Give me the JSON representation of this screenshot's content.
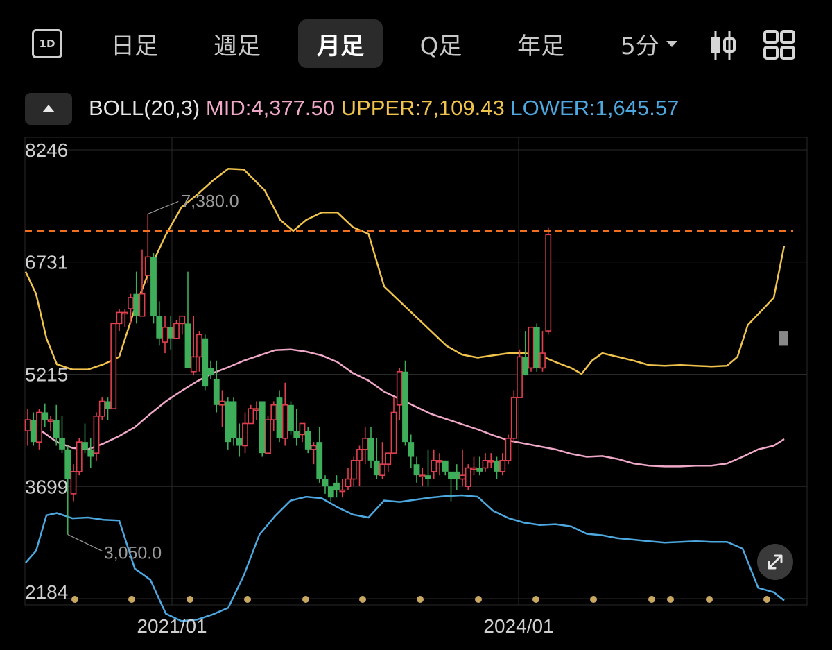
{
  "toolbar": {
    "interval_icon": "1D",
    "tabs": [
      "日足",
      "週足",
      "月足",
      "Q足",
      "年足"
    ],
    "active_tab": "月足",
    "minute_select": "5分",
    "chart_style_icon": "candlestick-icon",
    "layout_icon": "grid-icon"
  },
  "indicator": {
    "name": "BOLL(20,3)",
    "mid_label": "MID:4,377.50",
    "upper_label": "UPPER:7,109.43",
    "lower_label": "LOWER:1,645.57",
    "colors": {
      "mid": "#f0a8c8",
      "upper": "#f0c44c",
      "lower": "#4ea8e0"
    }
  },
  "chart_data": {
    "type": "candlestick",
    "y_axis": {
      "min": 2184,
      "max": 8246,
      "ticks": [
        8246,
        6731,
        5215,
        3699,
        2184
      ]
    },
    "x_axis": {
      "labels": [
        "2021/01",
        "2024/01"
      ]
    },
    "high_annotation": "7,380.0",
    "low_annotation": "3,050.0",
    "current_price_line": 7150,
    "colors": {
      "up": "#e0404e",
      "down": "#3fae5a",
      "dashed_line": "#f07020",
      "gray_bar": "#888888"
    },
    "candles": [
      [
        4450,
        4600,
        4750,
        4250
      ],
      [
        4600,
        4300,
        4700,
        4250
      ],
      [
        4300,
        4700,
        4750,
        4200
      ],
      [
        4700,
        4600,
        4820,
        4500
      ],
      [
        4600,
        4600,
        4650,
        4450
      ],
      [
        4600,
        4350,
        4800,
        4250
      ],
      [
        4350,
        4200,
        4650,
        4150
      ],
      [
        4200,
        3800,
        4250,
        3050
      ],
      [
        3600,
        3900,
        4000,
        3500
      ],
      [
        3900,
        4300,
        4350,
        3850
      ],
      [
        4300,
        4200,
        4550,
        4150
      ],
      [
        4200,
        4100,
        4350,
        3950
      ],
      [
        4150,
        4650,
        4700,
        4050
      ],
      [
        4650,
        4850,
        4900,
        4600
      ],
      [
        4850,
        4750,
        4900,
        4600
      ],
      [
        4750,
        5900,
        5900,
        4750
      ],
      [
        5900,
        6050,
        6100,
        5800
      ],
      [
        6050,
        6050,
        6100,
        5850
      ],
      [
        6100,
        6250,
        6300,
        5900
      ],
      [
        6300,
        6000,
        6600,
        5900
      ],
      [
        6000,
        6300,
        6900,
        6000
      ],
      [
        6550,
        6800,
        7380,
        6450
      ],
      [
        6800,
        6000,
        6850,
        5900
      ],
      [
        6000,
        5700,
        6200,
        5600
      ],
      [
        5650,
        5850,
        6000,
        5500
      ],
      [
        5850,
        5700,
        6000,
        5550
      ],
      [
        5700,
        5900,
        5950,
        5700
      ],
      [
        5900,
        6000,
        6000,
        5750
      ],
      [
        5900,
        5300,
        6600,
        5300
      ],
      [
        5250,
        5450,
        6000,
        5200
      ],
      [
        5450,
        5750,
        5800,
        5250
      ],
      [
        5700,
        5050,
        5750,
        5000
      ],
      [
        5300,
        5200,
        5400,
        5150
      ],
      [
        5150,
        4800,
        5400,
        4700
      ],
      [
        4800,
        4850,
        5000,
        4500
      ],
      [
        4850,
        4300,
        4900,
        4200
      ],
      [
        4850,
        4350,
        4900,
        4250
      ],
      [
        4350,
        4250,
        4550,
        4100
      ],
      [
        4250,
        4550,
        4700,
        4150
      ],
      [
        4550,
        4750,
        4800,
        4550
      ],
      [
        4750,
        4750,
        4850,
        4600
      ],
      [
        4850,
        4150,
        4850,
        4100
      ],
      [
        4150,
        4600,
        4650,
        4150
      ],
      [
        4600,
        4800,
        4850,
        4450
      ],
      [
        4900,
        4350,
        5000,
        4300
      ],
      [
        4350,
        4800,
        5100,
        4250
      ],
      [
        4800,
        4450,
        4850,
        4400
      ],
      [
        4450,
        4350,
        4750,
        4250
      ],
      [
        4400,
        4550,
        4500,
        4300
      ],
      [
        4450,
        4200,
        4500,
        4150
      ],
      [
        4200,
        4250,
        4300,
        4000
      ],
      [
        4300,
        3800,
        4500,
        3750
      ],
      [
        3800,
        3700,
        3850,
        3600
      ],
      [
        3700,
        3550,
        3700,
        3500
      ],
      [
        3750,
        3650,
        3850,
        3550
      ],
      [
        3650,
        3650,
        3800,
        3550
      ],
      [
        3700,
        3800,
        3950,
        3650
      ],
      [
        3800,
        4050,
        4100,
        3700
      ],
      [
        4050,
        4200,
        4250,
        3700
      ],
      [
        4200,
        4350,
        4500,
        4000
      ],
      [
        4350,
        4050,
        4500,
        3950
      ],
      [
        4050,
        3850,
        4350,
        3800
      ],
      [
        3850,
        4000,
        4300,
        3800
      ],
      [
        4000,
        4150,
        4150,
        3900
      ],
      [
        4150,
        4700,
        4900,
        4200
      ],
      [
        4800,
        5250,
        5300,
        4600
      ],
      [
        5250,
        4300,
        5400,
        4250
      ],
      [
        4300,
        4100,
        4400,
        3950
      ],
      [
        4000,
        3850,
        4100,
        3750
      ],
      [
        3850,
        3850,
        3950,
        3700
      ],
      [
        3850,
        3800,
        4200,
        3700
      ],
      [
        3900,
        4050,
        4200,
        3800
      ],
      [
        4050,
        4050,
        4150,
        3850
      ],
      [
        4050,
        3900,
        4050,
        3850
      ],
      [
        3900,
        3800,
        3850,
        3500
      ],
      [
        3900,
        3800,
        4000,
        3650
      ],
      [
        3800,
        3850,
        4200,
        3700
      ],
      [
        3700,
        3950,
        4000,
        3650
      ],
      [
        3950,
        3950,
        4100,
        3850
      ],
      [
        3950,
        3900,
        4100,
        3850
      ],
      [
        3950,
        4050,
        4150,
        3900
      ],
      [
        4050,
        4050,
        4150,
        3950
      ],
      [
        4050,
        3900,
        4100,
        3800
      ],
      [
        3900,
        4050,
        4150,
        3850
      ],
      [
        4050,
        4350,
        4400,
        4000
      ],
      [
        4350,
        4900,
        5000,
        4300
      ],
      [
        4900,
        5450,
        5550,
        4900
      ],
      [
        5450,
        5200,
        5800,
        5200
      ],
      [
        5300,
        5850,
        5850,
        5250
      ],
      [
        5850,
        5300,
        5900,
        5250
      ],
      [
        5300,
        5500,
        5800,
        5250
      ],
      [
        5800,
        7100,
        7200,
        5750
      ]
    ],
    "gray_candle": [
      5800,
      5600
    ],
    "upper_band": [
      [
        0,
        6600
      ],
      [
        4,
        6300
      ],
      [
        8,
        5700
      ],
      [
        12,
        5350
      ],
      [
        18,
        5280
      ],
      [
        24,
        5280
      ],
      [
        30,
        5350
      ],
      [
        36,
        5450
      ],
      [
        42,
        6100
      ],
      [
        48,
        6650
      ],
      [
        54,
        7100
      ],
      [
        60,
        7470
      ],
      [
        66,
        7640
      ],
      [
        72,
        7830
      ],
      [
        78,
        7990
      ],
      [
        84,
        7980
      ],
      [
        92,
        7700
      ],
      [
        98,
        7300
      ],
      [
        103,
        7150
      ],
      [
        108,
        7300
      ],
      [
        114,
        7400
      ],
      [
        120,
        7400
      ],
      [
        126,
        7200
      ],
      [
        132,
        7110
      ],
      [
        138,
        6400
      ],
      [
        144,
        6200
      ],
      [
        150,
        6000
      ],
      [
        156,
        5800
      ],
      [
        162,
        5600
      ],
      [
        168,
        5480
      ],
      [
        174,
        5440
      ],
      [
        180,
        5470
      ],
      [
        186,
        5500
      ],
      [
        192,
        5500
      ],
      [
        198,
        5470
      ],
      [
        204,
        5380
      ],
      [
        210,
        5300
      ],
      [
        214,
        5220
      ],
      [
        218,
        5400
      ],
      [
        222,
        5500
      ],
      [
        228,
        5450
      ],
      [
        234,
        5400
      ],
      [
        240,
        5340
      ],
      [
        246,
        5330
      ],
      [
        252,
        5340
      ],
      [
        258,
        5330
      ],
      [
        264,
        5320
      ],
      [
        270,
        5330
      ],
      [
        274,
        5450
      ],
      [
        278,
        5880
      ],
      [
        284,
        6100
      ],
      [
        288,
        6250
      ],
      [
        292,
        6950
      ]
    ],
    "mid_band": [
      [
        0,
        4580
      ],
      [
        6,
        4450
      ],
      [
        12,
        4300
      ],
      [
        18,
        4220
      ],
      [
        24,
        4200
      ],
      [
        30,
        4280
      ],
      [
        36,
        4380
      ],
      [
        42,
        4500
      ],
      [
        48,
        4680
      ],
      [
        54,
        4850
      ],
      [
        60,
        4990
      ],
      [
        66,
        5120
      ],
      [
        72,
        5230
      ],
      [
        78,
        5310
      ],
      [
        84,
        5400
      ],
      [
        90,
        5470
      ],
      [
        96,
        5540
      ],
      [
        102,
        5550
      ],
      [
        108,
        5520
      ],
      [
        114,
        5470
      ],
      [
        120,
        5380
      ],
      [
        126,
        5230
      ],
      [
        132,
        5130
      ],
      [
        138,
        4980
      ],
      [
        144,
        4880
      ],
      [
        150,
        4780
      ],
      [
        156,
        4680
      ],
      [
        162,
        4610
      ],
      [
        168,
        4540
      ],
      [
        174,
        4470
      ],
      [
        180,
        4390
      ],
      [
        186,
        4320
      ],
      [
        192,
        4280
      ],
      [
        198,
        4240
      ],
      [
        204,
        4200
      ],
      [
        210,
        4140
      ],
      [
        216,
        4100
      ],
      [
        222,
        4110
      ],
      [
        228,
        4070
      ],
      [
        234,
        4010
      ],
      [
        240,
        3980
      ],
      [
        246,
        3970
      ],
      [
        252,
        3970
      ],
      [
        258,
        3980
      ],
      [
        264,
        3980
      ],
      [
        270,
        4010
      ],
      [
        276,
        4100
      ],
      [
        282,
        4200
      ],
      [
        288,
        4250
      ],
      [
        292,
        4340
      ]
    ],
    "lower_band": [
      [
        0,
        2670
      ],
      [
        4,
        2830
      ],
      [
        8,
        3310
      ],
      [
        12,
        3340
      ],
      [
        18,
        3270
      ],
      [
        24,
        3280
      ],
      [
        30,
        3250
      ],
      [
        36,
        3240
      ],
      [
        42,
        2590
      ],
      [
        48,
        2440
      ],
      [
        54,
        1980
      ],
      [
        60,
        1880
      ],
      [
        66,
        1900
      ],
      [
        72,
        1970
      ],
      [
        78,
        2060
      ],
      [
        84,
        2500
      ],
      [
        90,
        3050
      ],
      [
        96,
        3300
      ],
      [
        102,
        3510
      ],
      [
        108,
        3560
      ],
      [
        114,
        3540
      ],
      [
        120,
        3420
      ],
      [
        126,
        3320
      ],
      [
        132,
        3280
      ],
      [
        138,
        3510
      ],
      [
        144,
        3490
      ],
      [
        150,
        3520
      ],
      [
        156,
        3550
      ],
      [
        162,
        3570
      ],
      [
        168,
        3580
      ],
      [
        174,
        3560
      ],
      [
        180,
        3370
      ],
      [
        186,
        3270
      ],
      [
        192,
        3210
      ],
      [
        198,
        3180
      ],
      [
        204,
        3190
      ],
      [
        210,
        3160
      ],
      [
        216,
        3060
      ],
      [
        222,
        3040
      ],
      [
        228,
        3000
      ],
      [
        234,
        2980
      ],
      [
        240,
        2960
      ],
      [
        246,
        2940
      ],
      [
        252,
        2950
      ],
      [
        258,
        2960
      ],
      [
        264,
        2950
      ],
      [
        270,
        2950
      ],
      [
        276,
        2860
      ],
      [
        282,
        2330
      ],
      [
        288,
        2270
      ],
      [
        292,
        2160
      ]
    ]
  }
}
